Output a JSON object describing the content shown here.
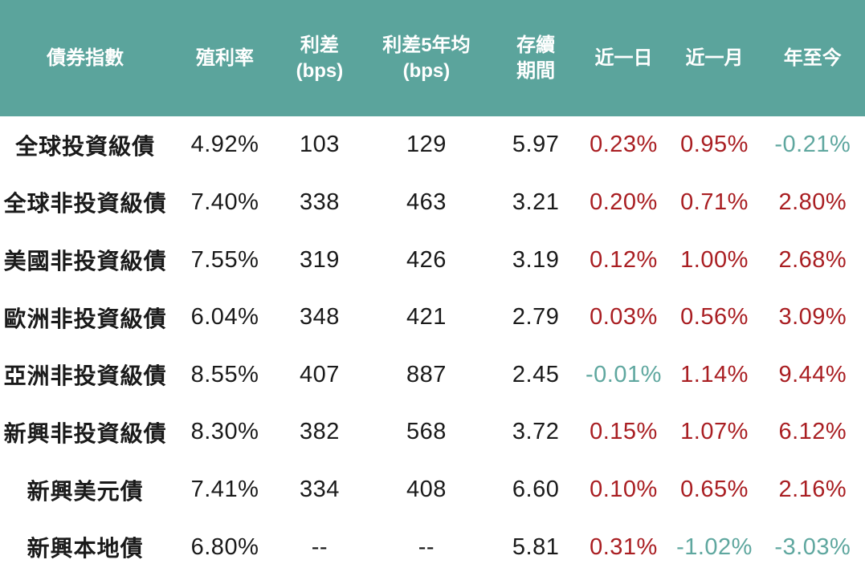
{
  "colors": {
    "header_bg": "#5BA49C",
    "header_text": "#FFFFFF",
    "body_bg": "#FFFFFF",
    "body_text": "#1A1A1A",
    "positive_red": "#A91E22",
    "negative_teal": "#5FA79F"
  },
  "chart_data": {
    "type": "table",
    "columns": [
      "債券指數",
      "殖利率",
      "利差(bps)",
      "利差5年均(bps)",
      "存續期間",
      "近一日",
      "近一月",
      "年至今"
    ],
    "header_lines": [
      [
        "債券指數"
      ],
      [
        "殖利率"
      ],
      [
        "利差",
        "(bps)"
      ],
      [
        "利差5年均",
        "(bps)"
      ],
      [
        "存續",
        "期間"
      ],
      [
        "近一日"
      ],
      [
        "近一月"
      ],
      [
        "年至今"
      ]
    ],
    "column_keys": [
      "index-name",
      "yield",
      "spread-bps",
      "spread-5y-avg-bps",
      "duration",
      "day-change",
      "month-change",
      "ytd-change"
    ],
    "change_column_indexes": [
      5,
      6,
      7
    ],
    "rows": [
      [
        "全球投資級債",
        "4.92%",
        "103",
        "129",
        "5.97",
        "0.23%",
        "0.95%",
        "-0.21%"
      ],
      [
        "全球非投資級債",
        "7.40%",
        "338",
        "463",
        "3.21",
        "0.20%",
        "0.71%",
        "2.80%"
      ],
      [
        "美國非投資級債",
        "7.55%",
        "319",
        "426",
        "3.19",
        "0.12%",
        "1.00%",
        "2.68%"
      ],
      [
        "歐洲非投資級債",
        "6.04%",
        "348",
        "421",
        "2.79",
        "0.03%",
        "0.56%",
        "3.09%"
      ],
      [
        "亞洲非投資級債",
        "8.55%",
        "407",
        "887",
        "2.45",
        "-0.01%",
        "1.14%",
        "9.44%"
      ],
      [
        "新興非投資級債",
        "8.30%",
        "382",
        "568",
        "3.72",
        "0.15%",
        "1.07%",
        "6.12%"
      ],
      [
        "新興美元債",
        "7.41%",
        "334",
        "408",
        "6.60",
        "0.10%",
        "0.65%",
        "2.16%"
      ],
      [
        "新興本地債",
        "6.80%",
        "--",
        "--",
        "5.81",
        "0.31%",
        "-1.02%",
        "-3.03%"
      ]
    ]
  }
}
